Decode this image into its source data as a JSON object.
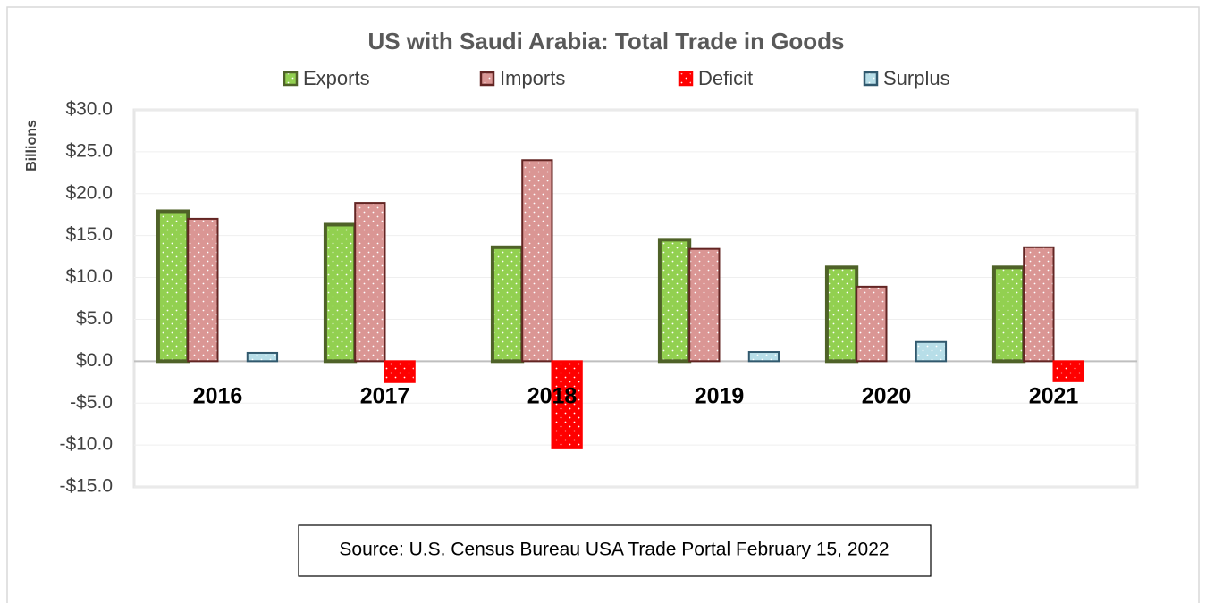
{
  "chart_data": {
    "type": "bar",
    "title": "US with Saudi Arabia: Total Trade in Goods",
    "y_label": "Billions",
    "source": "Source: U.S. Census Bureau USA Trade Portal February 15, 2022",
    "categories": [
      "2016",
      "2017",
      "2018",
      "2019",
      "2020",
      "2021"
    ],
    "series": [
      {
        "name": "Exports",
        "color": "#92d050",
        "edge": "#4f6228",
        "values": [
          17.9,
          16.3,
          13.6,
          14.5,
          11.2,
          11.2
        ]
      },
      {
        "name": "Imports",
        "color": "#da9694",
        "edge": "#632523",
        "values": [
          17.0,
          18.9,
          24.0,
          13.4,
          8.9,
          13.6
        ]
      },
      {
        "name": "Deficit",
        "color": "#ff0000",
        "edge": "#ff0000",
        "values": [
          null,
          -2.5,
          -10.4,
          null,
          null,
          -2.4
        ]
      },
      {
        "name": "Surplus",
        "color": "#b7dee8",
        "edge": "#31596e",
        "values": [
          1.0,
          null,
          null,
          1.1,
          2.3,
          null
        ]
      }
    ],
    "ylim": [
      -15,
      30
    ],
    "yticks": [
      {
        "value": -15,
        "label": "-$15.0"
      },
      {
        "value": -10,
        "label": "-$10.0"
      },
      {
        "value": -5,
        "label": "-$5.0"
      },
      {
        "value": 0,
        "label": "$0.0"
      },
      {
        "value": 5,
        "label": "$5.0"
      },
      {
        "value": 10,
        "label": "$10.0"
      },
      {
        "value": 15,
        "label": "$15.0"
      },
      {
        "value": 20,
        "label": "$20.0"
      },
      {
        "value": 25,
        "label": "$25.0"
      },
      {
        "value": 30,
        "label": "$30.0"
      }
    ],
    "grid": true,
    "legend": "top"
  }
}
